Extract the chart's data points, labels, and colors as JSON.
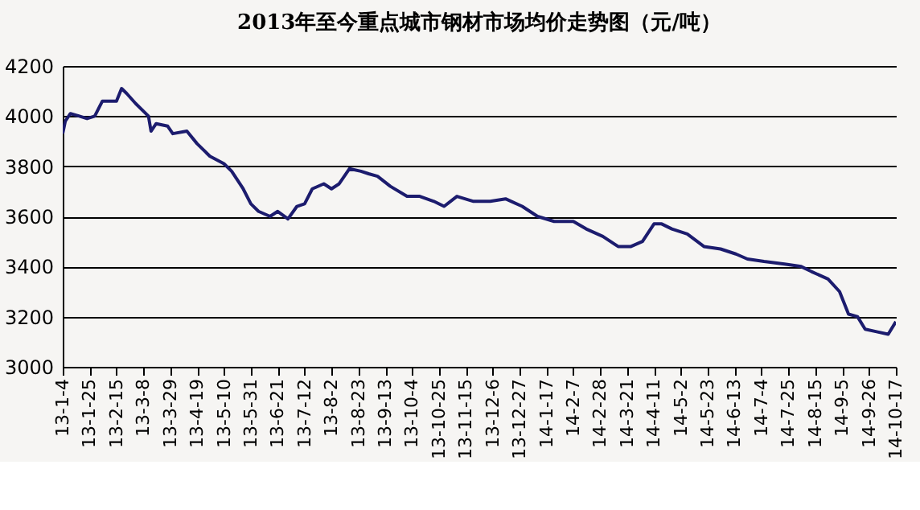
{
  "chart_data": {
    "type": "line",
    "title": "2013年至今重点城市钢材市场均价走势图（元/吨）",
    "x": [
      "2013-01-04",
      "2013-01-06",
      "2013-01-10",
      "2013-01-17",
      "2013-01-23",
      "2013-01-29",
      "2013-02-04",
      "2013-02-15",
      "2013-02-19",
      "2013-02-23",
      "2013-03-02",
      "2013-03-12",
      "2013-03-14",
      "2013-03-18",
      "2013-03-27",
      "2013-03-31",
      "2013-04-11",
      "2013-04-19",
      "2013-04-29",
      "2013-05-10",
      "2013-05-16",
      "2013-05-25",
      "2013-05-31",
      "2013-06-06",
      "2013-06-15",
      "2013-06-21",
      "2013-06-29",
      "2013-07-06",
      "2013-07-12",
      "2013-07-18",
      "2013-07-27",
      "2013-08-02",
      "2013-08-08",
      "2013-08-16",
      "2013-08-25",
      "2013-08-31",
      "2013-09-07",
      "2013-09-17",
      "2013-09-30",
      "2013-10-10",
      "2013-10-21",
      "2013-10-29",
      "2013-11-08",
      "2013-11-21",
      "2013-12-04",
      "2013-12-16",
      "2013-12-29",
      "2014-01-10",
      "2014-01-23",
      "2014-02-07",
      "2014-02-17",
      "2014-03-02",
      "2014-03-14",
      "2014-03-24",
      "2014-04-02",
      "2014-04-11",
      "2014-04-17",
      "2014-04-25",
      "2014-05-07",
      "2014-05-20",
      "2014-06-02",
      "2014-06-14",
      "2014-06-23",
      "2014-07-06",
      "2014-07-22",
      "2014-08-04",
      "2014-08-12",
      "2014-08-25",
      "2014-09-03",
      "2014-09-10",
      "2014-09-17",
      "2014-09-23",
      "2014-10-02",
      "2014-10-11",
      "2014-10-17"
    ],
    "series": [
      {
        "color": "#1c1c6e",
        "values": [
          3930,
          3980,
          4010,
          4000,
          3990,
          4000,
          4060,
          4060,
          4110,
          4090,
          4050,
          4000,
          3940,
          3970,
          3960,
          3930,
          3940,
          3890,
          3840,
          3810,
          3780,
          3710,
          3650,
          3620,
          3600,
          3620,
          3590,
          3640,
          3650,
          3710,
          3730,
          3710,
          3730,
          3790,
          3780,
          3770,
          3760,
          3720,
          3680,
          3680,
          3660,
          3640,
          3680,
          3660,
          3660,
          3670,
          3640,
          3600,
          3580,
          3580,
          3550,
          3520,
          3480,
          3480,
          3500,
          3570,
          3570,
          3550,
          3530,
          3480,
          3470,
          3450,
          3430,
          3420,
          3410,
          3400,
          3380,
          3350,
          3300,
          3210,
          3200,
          3150,
          3140,
          3130,
          3180
        ]
      }
    ],
    "ylim": [
      3000,
      4200
    ],
    "yticks": [
      3000,
      3200,
      3400,
      3600,
      3800,
      4000,
      4200
    ],
    "xlim": [
      "2013-01-04",
      "2014-10-17"
    ],
    "xticks": [
      {
        "value": "2013-01-04",
        "label": "13-1-4"
      },
      {
        "value": "2013-01-25",
        "label": "13-1-25"
      },
      {
        "value": "2013-02-15",
        "label": "13-2-15"
      },
      {
        "value": "2013-03-08",
        "label": "13-3-8"
      },
      {
        "value": "2013-03-29",
        "label": "13-3-29"
      },
      {
        "value": "2013-04-19",
        "label": "13-4-19"
      },
      {
        "value": "2013-05-10",
        "label": "13-5-10"
      },
      {
        "value": "2013-05-31",
        "label": "13-5-31"
      },
      {
        "value": "2013-06-21",
        "label": "13-6-21"
      },
      {
        "value": "2013-07-12",
        "label": "13-7-12"
      },
      {
        "value": "2013-08-02",
        "label": "13-8-2"
      },
      {
        "value": "2013-08-23",
        "label": "13-8-23"
      },
      {
        "value": "2013-09-13",
        "label": "13-9-13"
      },
      {
        "value": "2013-10-04",
        "label": "13-10-4"
      },
      {
        "value": "2013-10-25",
        "label": "13-10-25"
      },
      {
        "value": "2013-11-15",
        "label": "13-11-15"
      },
      {
        "value": "2013-12-06",
        "label": "13-12-6"
      },
      {
        "value": "2013-12-27",
        "label": "13-12-27"
      },
      {
        "value": "2014-01-17",
        "label": "14-1-17"
      },
      {
        "value": "2014-02-07",
        "label": "14-2-7"
      },
      {
        "value": "2014-02-28",
        "label": "14-2-28"
      },
      {
        "value": "2014-03-21",
        "label": "14-3-21"
      },
      {
        "value": "2014-04-11",
        "label": "14-4-11"
      },
      {
        "value": "2014-05-02",
        "label": "14-5-2"
      },
      {
        "value": "2014-05-23",
        "label": "14-5-23"
      },
      {
        "value": "2014-06-13",
        "label": "14-6-13"
      },
      {
        "value": "2014-07-04",
        "label": "14-7-4"
      },
      {
        "value": "2014-07-25",
        "label": "14-7-25"
      },
      {
        "value": "2014-08-15",
        "label": "14-8-15"
      },
      {
        "value": "2014-09-05",
        "label": "14-9-5"
      },
      {
        "value": "2014-09-26",
        "label": "14-9-26"
      },
      {
        "value": "2014-10-17",
        "label": "14-10-17"
      }
    ],
    "grid": "y",
    "marker": "none",
    "line_style": "solid"
  }
}
